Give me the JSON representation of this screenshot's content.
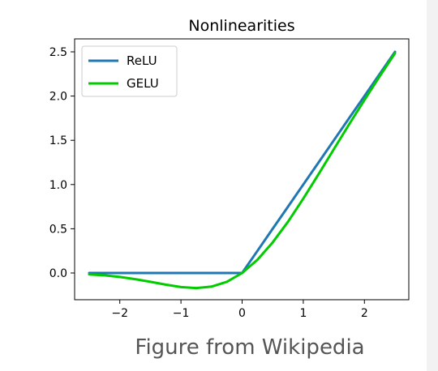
{
  "caption": "Figure from Wikipedia",
  "chart_data": {
    "type": "line",
    "title": "Nonlinearities",
    "xlabel": "",
    "ylabel": "",
    "xlim": [
      -2.5,
      2.5
    ],
    "ylim": [
      -0.2,
      2.5
    ],
    "xticks": [
      -2,
      -1,
      0,
      1,
      2
    ],
    "xtick_labels": [
      "−2",
      "−1",
      "0",
      "1",
      "2"
    ],
    "yticks": [
      0.0,
      0.5,
      1.0,
      1.5,
      2.0,
      2.5
    ],
    "ytick_labels": [
      "0.0",
      "0.5",
      "1.0",
      "1.5",
      "2.0",
      "2.5"
    ],
    "grid": false,
    "legend_position": "top-left",
    "x": [
      -2.5,
      -2.25,
      -2.0,
      -1.75,
      -1.5,
      -1.25,
      -1.0,
      -0.75,
      -0.5,
      -0.25,
      0.0,
      0.25,
      0.5,
      0.75,
      1.0,
      1.25,
      1.5,
      1.75,
      2.0,
      2.25,
      2.5
    ],
    "series": [
      {
        "name": "ReLU",
        "color": "#1f77b4",
        "values": [
          0,
          0,
          0,
          0,
          0,
          0,
          0,
          0,
          0,
          0,
          0,
          0.25,
          0.5,
          0.75,
          1.0,
          1.25,
          1.5,
          1.75,
          2.0,
          2.25,
          2.5
        ]
      },
      {
        "name": "GELU",
        "color": "#00cc00",
        "values": [
          -0.016,
          -0.027,
          -0.045,
          -0.07,
          -0.1,
          -0.132,
          -0.159,
          -0.17,
          -0.154,
          -0.1,
          0.0,
          0.15,
          0.346,
          0.58,
          0.841,
          1.118,
          1.4,
          1.68,
          1.955,
          2.223,
          2.484
        ]
      }
    ]
  }
}
